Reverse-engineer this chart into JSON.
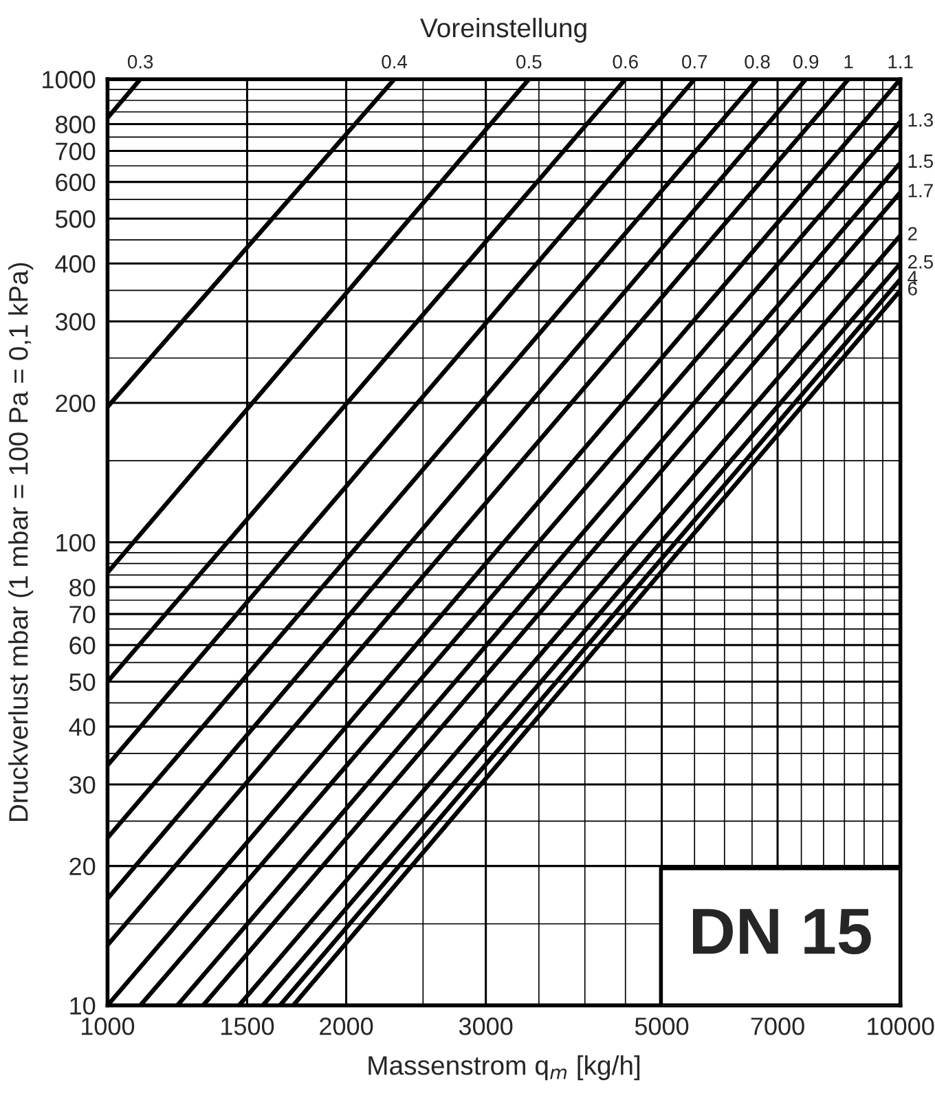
{
  "chart_data": {
    "type": "line",
    "title": "Voreinstellung",
    "xlabel": "Massenstrom q$_{m}$ [kg/h]",
    "ylabel": "Druckverlust mbar (1 mbar = 100 Pa = 0,1 kPa)",
    "log": "xy",
    "grid": true,
    "legend": false,
    "line_style": "solid",
    "xlim": [
      1000,
      10000
    ],
    "ylim": [
      10,
      1000
    ],
    "xticks": [
      1000,
      1500,
      2000,
      {
        "value": 2500,
        "label": null
      },
      3000,
      {
        "value": 3500,
        "label": null
      },
      {
        "value": 4000,
        "label": null
      },
      {
        "value": 4500,
        "label": null
      },
      5000,
      {
        "value": 5500,
        "label": null
      },
      {
        "value": 6000,
        "label": null
      },
      {
        "value": 6500,
        "label": null
      },
      7000,
      {
        "value": 7500,
        "label": null
      },
      {
        "value": 8000,
        "label": null
      },
      {
        "value": 8500,
        "label": null
      },
      {
        "value": 9000,
        "label": null
      },
      {
        "value": 9500,
        "label": null
      },
      10000
    ],
    "yticks": [
      10,
      {
        "value": 15,
        "label": null
      },
      20,
      {
        "value": 25,
        "label": null
      },
      30,
      {
        "value": 35,
        "label": null
      },
      40,
      {
        "value": 45,
        "label": null
      },
      50,
      {
        "value": 55,
        "label": null
      },
      60,
      {
        "value": 65,
        "label": null
      },
      70,
      {
        "value": 75,
        "label": null
      },
      80,
      {
        "value": 85,
        "label": null
      },
      {
        "value": 90,
        "label": null
      },
      {
        "value": 95,
        "label": null
      },
      100,
      {
        "value": 150,
        "label": null
      },
      200,
      {
        "value": 250,
        "label": null
      },
      300,
      {
        "value": 350,
        "label": null
      },
      400,
      {
        "value": 450,
        "label": null
      },
      500,
      {
        "value": 550,
        "label": null
      },
      600,
      {
        "value": 650,
        "label": null
      },
      700,
      {
        "value": 750,
        "label": null
      },
      800,
      {
        "value": 850,
        "label": null
      },
      {
        "value": 900,
        "label": null
      },
      {
        "value": 950,
        "label": null
      },
      1000
    ],
    "annotations": [
      "DN 15"
    ],
    "series": [
      {
        "name": "0.3",
        "color": "#000000",
        "x": [
          1000,
          1100
        ],
        "values": [
          825,
          1000
        ]
      },
      {
        "name": "0.4",
        "color": "#000000",
        "x": [
          1000,
          2300
        ],
        "values": [
          196,
          1000
        ]
      },
      {
        "name": "0.5",
        "color": "#000000",
        "x": [
          1000,
          3400
        ],
        "values": [
          86,
          1000
        ]
      },
      {
        "name": "0.6",
        "color": "#000000",
        "x": [
          1000,
          4500
        ],
        "values": [
          50,
          1000
        ]
      },
      {
        "name": "0.7",
        "color": "#000000",
        "x": [
          1000,
          5500
        ],
        "values": [
          33,
          1000
        ]
      },
      {
        "name": "0.8",
        "color": "#000000",
        "x": [
          1000,
          6600
        ],
        "values": [
          23,
          1000
        ]
      },
      {
        "name": "0.9",
        "color": "#000000",
        "x": [
          1000,
          7600
        ],
        "values": [
          17,
          1000
        ]
      },
      {
        "name": "1",
        "color": "#000000",
        "x": [
          1000,
          8600
        ],
        "values": [
          13.5,
          1000
        ]
      },
      {
        "name": "1.1",
        "color": "#000000",
        "x": [
          1000,
          10000
        ],
        "values": [
          10,
          1000
        ]
      },
      {
        "name": "1.3",
        "color": "#000000",
        "x": [
          1100,
          10000
        ],
        "values": [
          10,
          810
        ]
      },
      {
        "name": "1.5",
        "color": "#000000",
        "x": [
          1225,
          10000
        ],
        "values": [
          10,
          660
        ]
      },
      {
        "name": "1.7",
        "color": "#000000",
        "x": [
          1320,
          10000
        ],
        "values": [
          10,
          570
        ]
      },
      {
        "name": "2",
        "color": "#000000",
        "x": [
          1465,
          10000
        ],
        "values": [
          10,
          460
        ]
      },
      {
        "name": "2.5",
        "color": "#000000",
        "x": [
          1570,
          10000
        ],
        "values": [
          10,
          400
        ]
      },
      {
        "name": "4",
        "color": "#000000",
        "x": [
          1650,
          10000
        ],
        "values": [
          10,
          370
        ]
      },
      {
        "name": "6",
        "color": "#000000",
        "x": [
          1715,
          10000
        ],
        "values": [
          10,
          350
        ]
      }
    ]
  }
}
